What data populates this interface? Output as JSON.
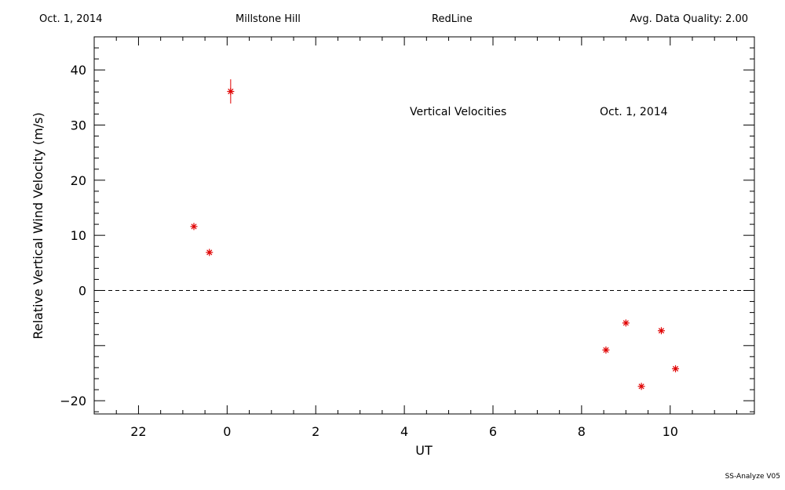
{
  "header": {
    "date": "Oct. 1, 2014",
    "site": "Millstone Hill",
    "line": "RedLine",
    "quality": "Avg. Data Quality: 2.00"
  },
  "footer": "SS-Analyze V05",
  "chart_data": {
    "type": "scatter",
    "title": "",
    "annotations": [
      "Vertical Velocities",
      "Oct. 1, 2014"
    ],
    "xlabel": "UT",
    "ylabel": "Relative Vertical Wind Velocity (m/s)",
    "x_tick_labels": [
      "22",
      "0",
      "2",
      "4",
      "6",
      "8",
      "10"
    ],
    "y_tick_labels": [
      "40",
      "30",
      "20",
      "10",
      "0",
      "−20"
    ],
    "reference_line": {
      "y": 0,
      "style": "dashed"
    },
    "marker": "asterisk",
    "color": "#e00000",
    "grid": false,
    "series": [
      {
        "points": [
          {
            "x": 23.25,
            "y": 11.6
          },
          {
            "x": 23.6,
            "y": 6.9
          },
          {
            "x": 0.08,
            "y": 36.1,
            "err": 2.2
          },
          {
            "x": 8.55,
            "y": -10.8
          },
          {
            "x": 9.0,
            "y": -5.9
          },
          {
            "x": 9.35,
            "y": -17.4
          },
          {
            "x": 9.8,
            "y": -7.3
          },
          {
            "x": 10.12,
            "y": -14.2
          }
        ]
      }
    ]
  }
}
